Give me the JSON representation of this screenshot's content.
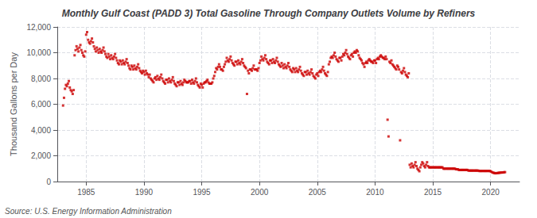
{
  "chart_data": {
    "type": "scatter",
    "title": "Monthly Gulf Coast (PADD 3) Total Gasoline Through Company Outlets Volume by Refiners",
    "ylabel": "Thousand Gallons per Day",
    "annotations": [
      "Source: U.S. Energy Information Administration"
    ],
    "color": "#cc0000",
    "marker": "square",
    "grid": true,
    "xlim": [
      1982.5,
      2022.5
    ],
    "xticks": [
      1985,
      1990,
      1995,
      2000,
      2005,
      2010,
      2015,
      2020
    ],
    "ylim": [
      0,
      12000
    ],
    "yticks": [
      0,
      {
        "value": 2000,
        "label": "2,000"
      },
      {
        "value": 4000,
        "label": "4,000"
      },
      {
        "value": 6000,
        "label": "6,000"
      },
      {
        "value": 8000,
        "label": "8,000"
      },
      {
        "value": 10000,
        "label": "10,000"
      },
      {
        "value": 12000,
        "label": "12,000"
      }
    ],
    "x": [
      1983.0,
      1983.083,
      1983.167,
      1983.25,
      1983.333,
      1983.417,
      1983.5,
      1983.583,
      1983.667,
      1983.75,
      1983.833,
      1983.917,
      1984.0,
      1984.083,
      1984.167,
      1984.25,
      1984.333,
      1984.417,
      1984.5,
      1984.583,
      1984.667,
      1984.75,
      1984.833,
      1984.917,
      1985.0,
      1985.083,
      1985.167,
      1985.25,
      1985.333,
      1985.417,
      1985.5,
      1985.583,
      1985.667,
      1985.75,
      1985.833,
      1985.917,
      1986.0,
      1986.083,
      1986.167,
      1986.25,
      1986.333,
      1986.417,
      1986.5,
      1986.583,
      1986.667,
      1986.75,
      1986.833,
      1986.917,
      1987.0,
      1987.083,
      1987.167,
      1987.25,
      1987.333,
      1987.417,
      1987.5,
      1987.583,
      1987.667,
      1987.75,
      1987.833,
      1987.917,
      1988.0,
      1988.083,
      1988.167,
      1988.25,
      1988.333,
      1988.417,
      1988.5,
      1988.583,
      1988.667,
      1988.75,
      1988.833,
      1988.917,
      1989.0,
      1989.083,
      1989.167,
      1989.25,
      1989.333,
      1989.417,
      1989.5,
      1989.583,
      1989.667,
      1989.75,
      1989.833,
      1989.917,
      1990.0,
      1990.083,
      1990.167,
      1990.25,
      1990.333,
      1990.417,
      1990.5,
      1990.583,
      1990.667,
      1990.75,
      1990.833,
      1990.917,
      1991.0,
      1991.083,
      1991.167,
      1991.25,
      1991.333,
      1991.417,
      1991.5,
      1991.583,
      1991.667,
      1991.75,
      1991.833,
      1991.917,
      1992.0,
      1992.083,
      1992.167,
      1992.25,
      1992.333,
      1992.417,
      1992.5,
      1992.583,
      1992.667,
      1992.75,
      1992.833,
      1992.917,
      1993.0,
      1993.083,
      1993.167,
      1993.25,
      1993.333,
      1993.417,
      1993.5,
      1993.583,
      1993.667,
      1993.75,
      1993.833,
      1993.917,
      1994.0,
      1994.083,
      1994.167,
      1994.25,
      1994.333,
      1994.417,
      1994.5,
      1994.583,
      1994.667,
      1994.75,
      1994.833,
      1994.917,
      1995.0,
      1995.083,
      1995.167,
      1995.25,
      1995.333,
      1995.417,
      1995.5,
      1995.583,
      1995.667,
      1995.75,
      1995.833,
      1995.917,
      1996.0,
      1996.083,
      1996.167,
      1996.25,
      1996.333,
      1996.417,
      1996.5,
      1996.583,
      1996.667,
      1996.75,
      1996.833,
      1996.917,
      1997.0,
      1997.083,
      1997.167,
      1997.25,
      1997.333,
      1997.417,
      1997.5,
      1997.583,
      1997.667,
      1997.75,
      1997.833,
      1997.917,
      1998.0,
      1998.083,
      1998.167,
      1998.25,
      1998.333,
      1998.417,
      1998.5,
      1998.583,
      1998.667,
      1998.75,
      1998.833,
      1998.917,
      1999.0,
      1999.083,
      1999.167,
      1999.25,
      1999.333,
      1999.417,
      1999.5,
      1999.583,
      1999.667,
      1999.75,
      1999.833,
      1999.917,
      2000.0,
      2000.083,
      2000.167,
      2000.25,
      2000.333,
      2000.417,
      2000.5,
      2000.583,
      2000.667,
      2000.75,
      2000.833,
      2000.917,
      2001.0,
      2001.083,
      2001.167,
      2001.25,
      2001.333,
      2001.417,
      2001.5,
      2001.583,
      2001.667,
      2001.75,
      2001.833,
      2001.917,
      2002.0,
      2002.083,
      2002.167,
      2002.25,
      2002.333,
      2002.417,
      2002.5,
      2002.583,
      2002.667,
      2002.75,
      2002.833,
      2002.917,
      2003.0,
      2003.083,
      2003.167,
      2003.25,
      2003.333,
      2003.417,
      2003.5,
      2003.583,
      2003.667,
      2003.75,
      2003.833,
      2003.917,
      2004.0,
      2004.083,
      2004.167,
      2004.25,
      2004.333,
      2004.417,
      2004.5,
      2004.583,
      2004.667,
      2004.75,
      2004.833,
      2004.917,
      2005.0,
      2005.083,
      2005.167,
      2005.25,
      2005.333,
      2005.417,
      2005.5,
      2005.583,
      2005.667,
      2005.75,
      2005.833,
      2005.917,
      2006.0,
      2006.083,
      2006.167,
      2006.25,
      2006.333,
      2006.417,
      2006.5,
      2006.583,
      2006.667,
      2006.75,
      2006.833,
      2006.917,
      2007.0,
      2007.083,
      2007.167,
      2007.25,
      2007.333,
      2007.417,
      2007.5,
      2007.583,
      2007.667,
      2007.75,
      2007.833,
      2007.917,
      2008.0,
      2008.083,
      2008.167,
      2008.25,
      2008.333,
      2008.417,
      2008.5,
      2008.583,
      2008.667,
      2008.75,
      2008.833,
      2008.917,
      2009.0,
      2009.083,
      2009.167,
      2009.25,
      2009.333,
      2009.417,
      2009.5,
      2009.583,
      2009.667,
      2009.75,
      2009.833,
      2009.917,
      2010.0,
      2010.083,
      2010.167,
      2010.25,
      2010.333,
      2010.417,
      2010.5,
      2010.583,
      2010.667,
      2010.75,
      2010.833,
      2010.917,
      2011.0,
      2011.083,
      2011.167,
      2011.25,
      2011.333,
      2011.417,
      2011.5,
      2011.583,
      2011.667,
      2011.75,
      2011.833,
      2011.917,
      2012.0,
      2012.083,
      2012.167,
      2012.25,
      2012.333,
      2012.417,
      2012.5,
      2012.583,
      2012.667,
      2012.75,
      2012.833,
      2012.917,
      2013.0,
      2013.083,
      2013.167,
      2013.25,
      2013.333,
      2013.417,
      2013.5,
      2013.583,
      2013.667,
      2013.75,
      2013.833,
      2013.917,
      2014.0,
      2014.083,
      2014.167,
      2014.25,
      2014.333,
      2014.417,
      2014.5,
      2014.583,
      2014.667,
      2014.75,
      2014.833,
      2014.917,
      2015.0,
      2015.083,
      2015.167,
      2015.25,
      2015.333,
      2015.417,
      2015.5,
      2015.583,
      2015.667,
      2015.75,
      2015.833,
      2015.917,
      2016.0,
      2016.083,
      2016.167,
      2016.25,
      2016.333,
      2016.417,
      2016.5,
      2016.583,
      2016.667,
      2016.75,
      2016.833,
      2016.917,
      2017.0,
      2017.083,
      2017.167,
      2017.25,
      2017.333,
      2017.417,
      2017.5,
      2017.583,
      2017.667,
      2017.75,
      2017.833,
      2017.917,
      2018.0,
      2018.083,
      2018.167,
      2018.25,
      2018.333,
      2018.417,
      2018.5,
      2018.583,
      2018.667,
      2018.75,
      2018.833,
      2018.917,
      2019.0,
      2019.083,
      2019.167,
      2019.25,
      2019.333,
      2019.417,
      2019.5,
      2019.583,
      2019.667,
      2019.75,
      2019.833,
      2019.917,
      2020.0,
      2020.083,
      2020.167,
      2020.25,
      2020.333,
      2020.417,
      2020.5,
      2020.583,
      2020.667,
      2020.75,
      2020.833,
      2020.917,
      2021.0,
      2021.083,
      2021.167,
      2021.25
    ],
    "values": [
      5900,
      6500,
      7200,
      7500,
      7400,
      7600,
      7800,
      7300,
      7100,
      7000,
      6800,
      7100,
      9800,
      10200,
      10500,
      10300,
      10100,
      10400,
      10600,
      10200,
      10000,
      9800,
      9700,
      10100,
      11400,
      11600,
      11000,
      10800,
      10700,
      10900,
      11100,
      10800,
      10500,
      10300,
      10100,
      10400,
      10200,
      10000,
      10300,
      10100,
      10000,
      10200,
      10400,
      10100,
      9900,
      9700,
      9600,
      9900,
      9700,
      9500,
      9800,
      9600,
      9500,
      9700,
      9900,
      9600,
      9400,
      9200,
      9100,
      9400,
      9300,
      9100,
      9400,
      9200,
      9100,
      9300,
      9500,
      9200,
      9000,
      8800,
      8700,
      9000,
      8900,
      8700,
      9000,
      8800,
      8700,
      8900,
      9100,
      8800,
      8600,
      8500,
      8400,
      8600,
      8500,
      8300,
      8600,
      8400,
      8300,
      8100,
      8300,
      8000,
      7900,
      7800,
      7700,
      8000,
      8100,
      7900,
      8200,
      8000,
      7900,
      8100,
      8300,
      8000,
      7800,
      7700,
      7600,
      7900,
      7900,
      7700,
      8000,
      7800,
      7700,
      7900,
      8100,
      7800,
      7600,
      7500,
      7400,
      7700,
      7700,
      7500,
      7800,
      7600,
      7500,
      7700,
      7900,
      7800,
      7700,
      7700,
      7700,
      7800,
      7800,
      7600,
      7900,
      7700,
      7600,
      7800,
      8000,
      7700,
      7500,
      7400,
      7300,
      7600,
      7500,
      7300,
      7600,
      7700,
      7700,
      7800,
      7900,
      7700,
      7600,
      7600,
      7600,
      7700,
      8000,
      8200,
      8500,
      8800,
      8700,
      8900,
      9100,
      8900,
      8700,
      8700,
      8600,
      8900,
      9100,
      9300,
      9600,
      9400,
      9300,
      9500,
      9700,
      9400,
      9200,
      9100,
      9000,
      9300,
      9300,
      9100,
      9400,
      9200,
      9100,
      9300,
      9500,
      9200,
      9000,
      8900,
      8800,
      6800,
      8600,
      8400,
      8700,
      8700,
      8600,
      8800,
      9000,
      8700,
      8700,
      8700,
      8600,
      8800,
      9200,
      9400,
      9700,
      9500,
      9400,
      9600,
      9800,
      9500,
      9300,
      9200,
      9100,
      9400,
      9400,
      9200,
      9500,
      9300,
      9200,
      9400,
      9600,
      9300,
      9100,
      9000,
      8900,
      9200,
      9000,
      8800,
      9100,
      8900,
      8800,
      9000,
      9200,
      8900,
      8700,
      8600,
      8500,
      8800,
      8700,
      8500,
      8800,
      8600,
      8500,
      8700,
      8900,
      8600,
      8400,
      8300,
      8200,
      8500,
      8500,
      8300,
      8600,
      8400,
      8300,
      8500,
      8700,
      8400,
      8200,
      8100,
      8000,
      8300,
      8400,
      8200,
      8500,
      8600,
      8500,
      8700,
      8900,
      8600,
      8400,
      8300,
      8200,
      8500,
      9100,
      9300,
      9600,
      9700,
      9600,
      9800,
      10000,
      9700,
      9500,
      9400,
      9300,
      9600,
      9600,
      9400,
      9700,
      9900,
      9800,
      10000,
      10200,
      9900,
      9700,
      9600,
      9500,
      9800,
      9900,
      9700,
      10000,
      10100,
      10000,
      10200,
      10100,
      9800,
      9600,
      9500,
      9400,
      9200,
      9100,
      8900,
      9200,
      9300,
      9200,
      9400,
      9500,
      9400,
      9300,
      9300,
      9200,
      9400,
      9400,
      9200,
      9500,
      9600,
      9500,
      9700,
      9800,
      9700,
      9600,
      9600,
      9500,
      9700,
      9500,
      4800,
      3500,
      9300,
      9200,
      9400,
      9100,
      9000,
      8900,
      8800,
      8700,
      9000,
      8900,
      8700,
      3200,
      8500,
      8400,
      8600,
      8800,
      8500,
      8300,
      8200,
      8100,
      8400,
      1300,
      1100,
      1400,
      1200,
      1100,
      1300,
      1500,
      1200,
      1000,
      900,
      800,
      1100,
      1300,
      1500,
      1400,
      1200,
      1100,
      1300,
      1500,
      1200,
      1100,
      1100,
      1100,
      1100,
      1100,
      1100,
      1100,
      1100,
      1100,
      1100,
      1100,
      1100,
      1100,
      1100,
      1100,
      1000,
      1000,
      1000,
      1000,
      1000,
      1000,
      1000,
      1000,
      1000,
      1000,
      1000,
      1000,
      1000,
      950,
      950,
      950,
      900,
      900,
      900,
      900,
      900,
      900,
      900,
      900,
      900,
      900,
      850,
      850,
      850,
      850,
      850,
      850,
      850,
      850,
      850,
      850,
      850,
      820,
      820,
      820,
      820,
      820,
      820,
      820,
      820,
      820,
      820,
      820,
      820,
      800,
      750,
      700,
      680,
      660,
      640,
      650,
      660,
      670,
      680,
      690,
      700,
      700,
      710,
      720,
      730
    ]
  }
}
